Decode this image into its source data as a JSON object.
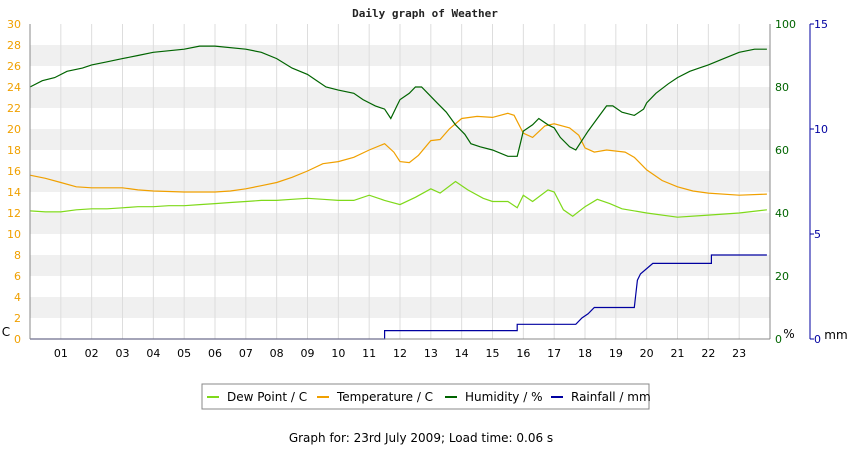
{
  "colors": {
    "dew_point": "#7fd91a",
    "temperature": "#f0a000",
    "humidity": "#006400",
    "rainfall": "#0000a0",
    "band": "#f0f0f0",
    "grid": "#dddddd",
    "axis": "#888888"
  },
  "footer_text": "Graph for: 23rd July 2009; Load time: 0.06 s",
  "chart_data": {
    "type": "line",
    "title": "Daily graph of Weather",
    "x_range": [
      0,
      24
    ],
    "x_ticks": [
      "01",
      "02",
      "03",
      "04",
      "05",
      "06",
      "07",
      "08",
      "09",
      "10",
      "11",
      "12",
      "13",
      "14",
      "15",
      "16",
      "17",
      "18",
      "19",
      "20",
      "21",
      "22",
      "23"
    ],
    "axes": {
      "left": {
        "unit_label": "C",
        "range": [
          0,
          30
        ],
        "ticks": [
          0,
          2,
          4,
          6,
          8,
          10,
          12,
          14,
          16,
          18,
          20,
          22,
          24,
          26,
          28,
          30
        ]
      },
      "right_humidity": {
        "unit_label": "%",
        "range": [
          0,
          100
        ],
        "ticks": [
          0,
          20,
          40,
          60,
          80,
          100
        ]
      },
      "right_rain": {
        "unit_label": "mm",
        "range": [
          0,
          15
        ],
        "ticks": [
          0,
          5,
          10,
          15
        ]
      }
    },
    "grid": true,
    "legend_position": "bottom",
    "series": [
      {
        "name": "Dew Point / C",
        "axis": "left",
        "key": "dew_point",
        "points": [
          [
            0,
            12.2
          ],
          [
            0.5,
            12.1
          ],
          [
            1,
            12.1
          ],
          [
            1.5,
            12.3
          ],
          [
            2,
            12.4
          ],
          [
            2.5,
            12.4
          ],
          [
            3,
            12.5
          ],
          [
            3.5,
            12.6
          ],
          [
            4,
            12.6
          ],
          [
            4.5,
            12.7
          ],
          [
            5,
            12.7
          ],
          [
            5.5,
            12.8
          ],
          [
            6,
            12.9
          ],
          [
            6.5,
            13.0
          ],
          [
            7,
            13.1
          ],
          [
            7.5,
            13.2
          ],
          [
            8,
            13.2
          ],
          [
            8.5,
            13.3
          ],
          [
            9,
            13.4
          ],
          [
            9.5,
            13.3
          ],
          [
            10,
            13.2
          ],
          [
            10.5,
            13.2
          ],
          [
            11,
            13.7
          ],
          [
            11.5,
            13.2
          ],
          [
            12,
            12.8
          ],
          [
            12.5,
            13.5
          ],
          [
            13,
            14.3
          ],
          [
            13.3,
            13.9
          ],
          [
            13.8,
            15.0
          ],
          [
            14.2,
            14.2
          ],
          [
            14.7,
            13.4
          ],
          [
            15,
            13.1
          ],
          [
            15.5,
            13.1
          ],
          [
            15.8,
            12.5
          ],
          [
            16,
            13.7
          ],
          [
            16.3,
            13.1
          ],
          [
            16.8,
            14.2
          ],
          [
            17,
            14.0
          ],
          [
            17.3,
            12.3
          ],
          [
            17.6,
            11.7
          ],
          [
            18,
            12.6
          ],
          [
            18.4,
            13.3
          ],
          [
            18.8,
            12.9
          ],
          [
            19.2,
            12.4
          ],
          [
            20,
            12.0
          ],
          [
            21,
            11.6
          ],
          [
            22,
            11.8
          ],
          [
            23,
            12.0
          ],
          [
            23.9,
            12.3
          ]
        ]
      },
      {
        "name": "Temperature / C",
        "axis": "left",
        "key": "temperature",
        "points": [
          [
            0,
            15.6
          ],
          [
            0.5,
            15.3
          ],
          [
            1,
            14.9
          ],
          [
            1.5,
            14.5
          ],
          [
            2,
            14.4
          ],
          [
            3,
            14.4
          ],
          [
            3.5,
            14.2
          ],
          [
            4,
            14.1
          ],
          [
            5,
            14.0
          ],
          [
            6,
            14.0
          ],
          [
            6.5,
            14.1
          ],
          [
            7,
            14.3
          ],
          [
            7.5,
            14.6
          ],
          [
            8,
            14.9
          ],
          [
            8.5,
            15.4
          ],
          [
            9,
            16.0
          ],
          [
            9.5,
            16.7
          ],
          [
            10,
            16.9
          ],
          [
            10.5,
            17.3
          ],
          [
            11,
            18.0
          ],
          [
            11.5,
            18.6
          ],
          [
            11.8,
            17.8
          ],
          [
            12,
            16.9
          ],
          [
            12.3,
            16.8
          ],
          [
            12.6,
            17.5
          ],
          [
            13,
            18.9
          ],
          [
            13.3,
            19.0
          ],
          [
            13.6,
            20.0
          ],
          [
            14,
            21.0
          ],
          [
            14.5,
            21.2
          ],
          [
            15,
            21.1
          ],
          [
            15.5,
            21.5
          ],
          [
            15.7,
            21.3
          ],
          [
            16,
            19.6
          ],
          [
            16.3,
            19.2
          ],
          [
            16.7,
            20.3
          ],
          [
            17,
            20.5
          ],
          [
            17.5,
            20.1
          ],
          [
            17.8,
            19.4
          ],
          [
            18,
            18.2
          ],
          [
            18.3,
            17.8
          ],
          [
            18.7,
            18.0
          ],
          [
            19.3,
            17.8
          ],
          [
            19.6,
            17.3
          ],
          [
            20,
            16.1
          ],
          [
            20.5,
            15.1
          ],
          [
            21,
            14.5
          ],
          [
            21.5,
            14.1
          ],
          [
            22,
            13.9
          ],
          [
            23,
            13.7
          ],
          [
            23.9,
            13.8
          ]
        ]
      },
      {
        "name": "Humidity / %",
        "axis": "right_humidity",
        "key": "humidity",
        "points": [
          [
            0,
            80
          ],
          [
            0.4,
            82
          ],
          [
            0.8,
            83
          ],
          [
            1.2,
            85
          ],
          [
            1.7,
            86
          ],
          [
            2,
            87
          ],
          [
            2.5,
            88
          ],
          [
            3,
            89
          ],
          [
            3.5,
            90
          ],
          [
            4,
            91
          ],
          [
            5,
            92
          ],
          [
            5.5,
            93
          ],
          [
            6,
            93
          ],
          [
            7,
            92
          ],
          [
            7.5,
            91
          ],
          [
            8,
            89
          ],
          [
            8.5,
            86
          ],
          [
            9,
            84
          ],
          [
            9.3,
            82
          ],
          [
            9.6,
            80
          ],
          [
            10,
            79
          ],
          [
            10.5,
            78
          ],
          [
            10.8,
            76
          ],
          [
            11.2,
            74
          ],
          [
            11.5,
            73
          ],
          [
            11.7,
            70
          ],
          [
            11.9,
            74
          ],
          [
            12,
            76
          ],
          [
            12.3,
            78
          ],
          [
            12.5,
            80
          ],
          [
            12.7,
            80
          ],
          [
            12.9,
            78
          ],
          [
            13.2,
            75
          ],
          [
            13.5,
            72
          ],
          [
            13.8,
            68
          ],
          [
            14.1,
            65
          ],
          [
            14.3,
            62
          ],
          [
            14.6,
            61
          ],
          [
            15,
            60
          ],
          [
            15.5,
            58
          ],
          [
            15.8,
            58
          ],
          [
            15.9,
            62
          ],
          [
            16,
            66
          ],
          [
            16.3,
            68
          ],
          [
            16.5,
            70
          ],
          [
            16.8,
            68
          ],
          [
            17,
            67
          ],
          [
            17.2,
            64
          ],
          [
            17.5,
            61
          ],
          [
            17.7,
            60
          ],
          [
            17.9,
            63
          ],
          [
            18.1,
            66
          ],
          [
            18.4,
            70
          ],
          [
            18.7,
            74
          ],
          [
            18.9,
            74
          ],
          [
            19.2,
            72
          ],
          [
            19.6,
            71
          ],
          [
            19.9,
            73
          ],
          [
            20,
            75
          ],
          [
            20.3,
            78
          ],
          [
            20.7,
            81
          ],
          [
            21,
            83
          ],
          [
            21.4,
            85
          ],
          [
            21.7,
            86
          ],
          [
            22,
            87
          ],
          [
            22.5,
            89
          ],
          [
            23,
            91
          ],
          [
            23.5,
            92
          ],
          [
            23.9,
            92
          ]
        ]
      },
      {
        "name": "Rainfall / mm",
        "axis": "right_rain",
        "key": "rainfall",
        "points": [
          [
            0,
            0
          ],
          [
            11.5,
            0
          ],
          [
            11.5,
            0.4
          ],
          [
            15.8,
            0.4
          ],
          [
            15.8,
            0.7
          ],
          [
            17.7,
            0.7
          ],
          [
            17.9,
            1.0
          ],
          [
            18.1,
            1.2
          ],
          [
            18.3,
            1.5
          ],
          [
            19.3,
            1.5
          ],
          [
            19.6,
            1.5
          ],
          [
            19.7,
            2.8
          ],
          [
            19.8,
            3.1
          ],
          [
            20.2,
            3.6
          ],
          [
            21,
            3.6
          ],
          [
            22.1,
            3.6
          ],
          [
            22.1,
            4.0
          ],
          [
            23.9,
            4.0
          ]
        ]
      }
    ]
  }
}
